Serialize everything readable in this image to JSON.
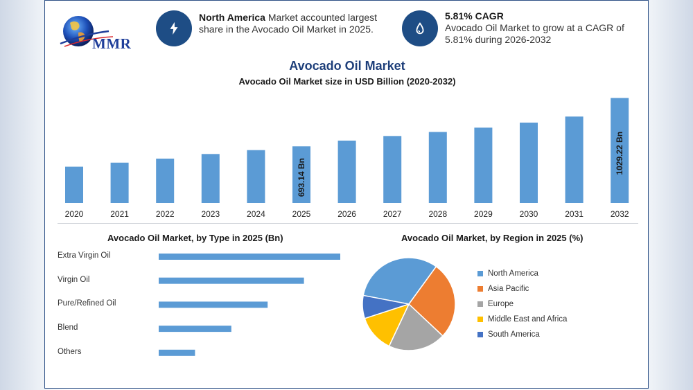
{
  "header": {
    "logo_text": "MMR",
    "info1": {
      "bold": "North America",
      "text": " Market accounted largest share in the Avocado Oil Market in 2025.",
      "icon": "lightning-icon"
    },
    "info2": {
      "bold": "5.81% CAGR",
      "text": "Avocado Oil Market to grow at a CAGR of 5.81% during 2026-2032",
      "icon": "oil-drop-icon"
    }
  },
  "colors": {
    "bar": "#5b9bd5",
    "navy": "#1e4d85",
    "title": "#1e3f7a"
  },
  "chart_data": [
    {
      "type": "bar",
      "title": "Avocado Oil Market",
      "subtitle": "Avocado Oil Market size in USD Billion (2020-2032)",
      "categories": [
        "2020",
        "2021",
        "2022",
        "2023",
        "2024",
        "2025",
        "2026",
        "2027",
        "2028",
        "2029",
        "2030",
        "2031",
        "2032"
      ],
      "values": [
        552,
        580,
        608,
        640,
        667,
        693.14,
        733,
        765,
        793,
        823,
        858,
        900,
        1029.22
      ],
      "data_labels": [
        {
          "index": 5,
          "text": "693.14 Bn"
        },
        {
          "index": 12,
          "text": "1029.22 Bn"
        }
      ],
      "ylim": [
        300,
        1060
      ],
      "grid": false
    },
    {
      "type": "bar",
      "orientation": "horizontal",
      "title": "Avocado Oil Market, by Type in 2025 (Bn)",
      "categories": [
        "Extra Virgin Oil",
        "Virgin Oil",
        "Pure/Refined Oil",
        "Blend",
        "Others"
      ],
      "values": [
        5,
        4,
        3,
        2,
        1
      ],
      "xlim": [
        0,
        5
      ]
    },
    {
      "type": "pie",
      "title": "Avocado Oil Market, by Region in 2025 (%)",
      "labels": [
        "North America",
        "Asia Pacific",
        "Europe",
        "Middle East and Africa",
        "South America"
      ],
      "values": [
        32,
        27,
        20,
        13,
        8
      ],
      "colors": [
        "#5b9bd5",
        "#ed7d31",
        "#a5a5a5",
        "#ffc000",
        "#4472c4"
      ],
      "legend": "right"
    }
  ]
}
